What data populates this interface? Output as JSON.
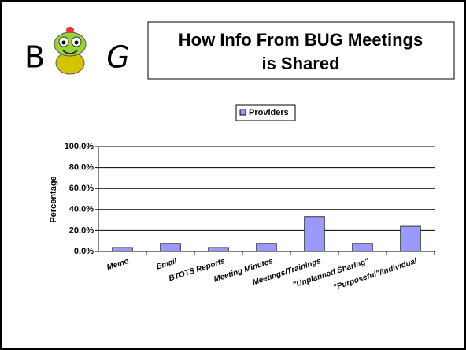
{
  "logo": {
    "left": "B",
    "right": "G"
  },
  "slide_title": [
    "How Info From BUG Meetings",
    "is Shared"
  ],
  "chart_data": {
    "type": "bar",
    "y_label": "Percentage",
    "categories": [
      "Memo",
      "Email",
      "BTOTS Reports",
      "Meeting Minutes",
      "Meetings/Trainings",
      "\"Unplanned Sharing\"",
      "\"Purposeful\"/Individual"
    ],
    "series": [
      {
        "name": "Providers",
        "color": "#9999ff",
        "values": [
          3.8,
          7.7,
          3.8,
          7.7,
          33.3,
          7.7,
          24.0
        ]
      }
    ],
    "ylim": [
      0,
      100
    ],
    "yticks": [
      {
        "value": 0,
        "label": "0.0%"
      },
      {
        "value": 20,
        "label": "20.0%"
      },
      {
        "value": 40,
        "label": "40.0%"
      },
      {
        "value": 60,
        "label": "60.0%"
      },
      {
        "value": 80,
        "label": "80.0%"
      },
      {
        "value": 100,
        "label": "100.0%"
      }
    ],
    "grid": true,
    "legend": "top"
  }
}
